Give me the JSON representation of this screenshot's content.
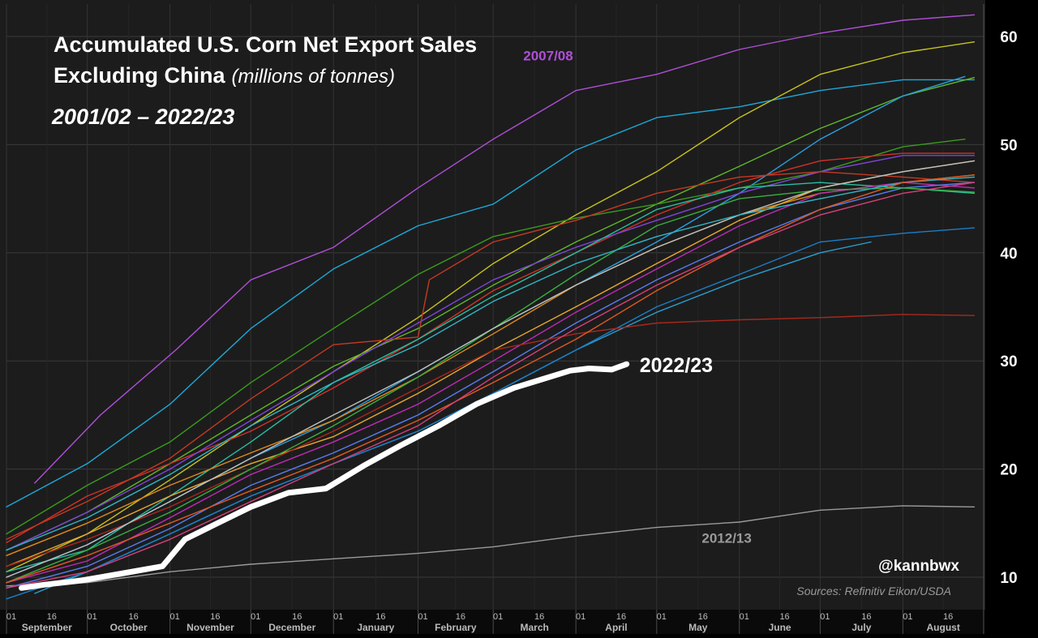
{
  "chart_data": {
    "type": "line",
    "title_line1": "Accumulated U.S. Corn Net Export Sales",
    "title_line2": "Excluding China",
    "title_units": "(millions of tonnes)",
    "subtitle": "2001/02 – 2022/23",
    "handle": "@kannbwx",
    "source": "Sources: Refinitiv Eikon/USDA",
    "ylim": [
      7,
      63
    ],
    "xlim": [
      0,
      52
    ],
    "y_ticks": [
      10,
      20,
      30,
      40,
      50,
      60
    ],
    "months": [
      {
        "name": "September",
        "start": 0
      },
      {
        "name": "October",
        "start": 4.3
      },
      {
        "name": "November",
        "start": 8.7
      },
      {
        "name": "December",
        "start": 13.0
      },
      {
        "name": "January",
        "start": 17.4
      },
      {
        "name": "February",
        "start": 21.9
      },
      {
        "name": "March",
        "start": 25.9
      },
      {
        "name": "April",
        "start": 30.3
      },
      {
        "name": "May",
        "start": 34.6
      },
      {
        "name": "June",
        "start": 39.0
      },
      {
        "name": "July",
        "start": 43.3
      },
      {
        "name": "August",
        "start": 47.7
      }
    ],
    "day_labels": [
      "01",
      "16"
    ],
    "series": [
      {
        "name": "2007/08",
        "color": "#b04fd8",
        "highlight": "label",
        "x": [
          1.5,
          5,
          9,
          13,
          17.4,
          21.9,
          25.9,
          30.3,
          34.6,
          39,
          43.3,
          47.7,
          51.5
        ],
        "y": [
          18.7,
          25,
          31,
          37.5,
          40.5,
          46,
          50.5,
          55,
          56.5,
          58.8,
          60.3,
          61.5,
          62
        ]
      },
      {
        "name": "2012/13",
        "color": "#9a9a9a",
        "highlight": "label",
        "x": [
          0,
          4.3,
          8.7,
          13,
          17.4,
          21.9,
          25.9,
          30.3,
          34.6,
          39,
          43.3,
          47.7,
          51.5
        ],
        "y": [
          9.2,
          9.5,
          10.5,
          11.2,
          11.7,
          12.2,
          12.8,
          13.8,
          14.6,
          15.1,
          16.2,
          16.6,
          16.5
        ]
      },
      {
        "name": "2022/23",
        "color": "#ffffff",
        "highlight": "bold",
        "x": [
          0.8,
          2,
          4,
          6,
          8.3,
          9.5,
          11,
          13,
          15,
          17,
          19,
          21,
          23,
          25,
          27,
          28.5,
          30,
          31,
          32.2,
          33
        ],
        "y": [
          9.0,
          9.3,
          9.7,
          10.3,
          11.0,
          13.5,
          14.8,
          16.5,
          17.8,
          18.2,
          20.3,
          22.2,
          24.0,
          26.0,
          27.5,
          28.3,
          29.1,
          29.3,
          29.2,
          29.7
        ]
      },
      {
        "x": [
          0,
          4.3,
          8.7,
          13,
          17.4,
          21.9,
          25.9,
          30.3,
          34.6,
          39,
          43.3,
          47.7,
          51.5
        ],
        "y": [
          16.5,
          20.5,
          26,
          33,
          38.5,
          42.5,
          44.5,
          49.5,
          52.5,
          53.5,
          55,
          56,
          56
        ],
        "color": "#1da9d8"
      },
      {
        "x": [
          0,
          4.3,
          8.7,
          13,
          17.4,
          21.9,
          25.9,
          30.3,
          34.6,
          39,
          43.3,
          47.7,
          51.5
        ],
        "y": [
          10.5,
          14,
          19,
          24,
          29,
          34,
          39,
          43.5,
          47.5,
          52.5,
          56.5,
          58.5,
          59.5
        ],
        "color": "#c8c21e"
      },
      {
        "x": [
          0,
          4.3,
          8.7,
          13,
          17.4,
          21.9,
          25.9,
          30.3,
          34.6,
          39,
          43.3,
          47.7,
          51.5
        ],
        "y": [
          12.5,
          16,
          20.5,
          25,
          29.5,
          33,
          37,
          41,
          44.5,
          48,
          51.5,
          54.5,
          56.2
        ],
        "color": "#5fb82a"
      },
      {
        "x": [
          0,
          4.3,
          8.7,
          13,
          17.4,
          21.9,
          25.9,
          30.3,
          34.6,
          39,
          43.3,
          47.7,
          51
        ],
        "y": [
          10,
          13,
          17,
          21,
          24.5,
          29,
          33,
          37,
          41,
          45.5,
          50.5,
          54.5,
          56.3
        ],
        "color": "#2a9fe0"
      },
      {
        "x": [
          0,
          4.3,
          8.7,
          13,
          17.4,
          21.9,
          25.9,
          30.3,
          34.6,
          39,
          43.3,
          47.7,
          51
        ],
        "y": [
          14,
          18.5,
          22.5,
          28,
          33,
          38,
          41.5,
          43.2,
          44.5,
          46,
          47.5,
          49.8,
          50.5
        ],
        "color": "#3a9c1c"
      },
      {
        "x": [
          0,
          4.3,
          8.7,
          13,
          17.4,
          21.9,
          25.9,
          30.3,
          34.6,
          39,
          43.3,
          47.7,
          51.5
        ],
        "y": [
          13.2,
          17.5,
          20.5,
          23.5,
          27.5,
          32,
          36.5,
          40,
          43.5,
          46.5,
          48.5,
          49.2,
          49.2
        ],
        "color": "#d2312a"
      },
      {
        "x": [
          0,
          4.3,
          8.7,
          13,
          17.4,
          21.9,
          25.9,
          30.3,
          34.6,
          39,
          43.3,
          47.7,
          51.5
        ],
        "y": [
          12.5,
          16,
          20,
          24.5,
          29,
          33.5,
          37.5,
          40.5,
          43,
          45.5,
          47.5,
          49,
          49
        ],
        "color": "#7f44d8"
      },
      {
        "x": [
          0,
          4.3,
          8.7,
          13,
          17.4,
          21.9,
          22.5,
          25.9,
          30.3,
          34.6,
          39,
          43.3,
          47.7,
          51.5
        ],
        "y": [
          13.5,
          17,
          21,
          26.5,
          31.5,
          32.2,
          37.5,
          41,
          43,
          45.5,
          47,
          47.5,
          47,
          46.5
        ],
        "color": "#c33a22"
      },
      {
        "x": [
          0,
          4.3,
          8.7,
          13,
          17.4,
          21.9,
          25.9,
          30.3,
          34.6,
          39,
          43.3,
          47.7,
          51.5
        ],
        "y": [
          10.5,
          12.5,
          17.5,
          22.5,
          28,
          32,
          36,
          40,
          44,
          46,
          46.5,
          46,
          45.5
        ],
        "color": "#25c0a0"
      },
      {
        "x": [
          0,
          4.3,
          8.7,
          13,
          17.4,
          21.9,
          25.9,
          30.3,
          34.6,
          39,
          43.3,
          47.7,
          51.5
        ],
        "y": [
          12,
          15,
          18.5,
          21.5,
          24.5,
          28.5,
          32.5,
          37,
          40.5,
          43.5,
          45.5,
          46.5,
          47.2
        ],
        "color": "#e08a1a"
      },
      {
        "x": [
          0,
          4.3,
          8.7,
          13,
          17.4,
          21.9,
          25.9,
          30.3,
          34.6,
          39,
          43.3,
          47.7,
          51.5
        ],
        "y": [
          11,
          14,
          17.5,
          20.5,
          23,
          27,
          31,
          35,
          39,
          43,
          46,
          47.5,
          48.5
        ],
        "color": "#e8a830"
      },
      {
        "x": [
          0,
          4.3,
          8.7,
          13,
          17.4,
          21.9,
          25.9,
          30.3,
          34.6,
          39,
          43.3,
          47.7,
          51.5
        ],
        "y": [
          9.5,
          11.5,
          15.5,
          19.5,
          22.5,
          26,
          30,
          34.5,
          38.5,
          42.5,
          45.5,
          46.5,
          46
        ],
        "color": "#c02ab8"
      },
      {
        "x": [
          0,
          4.3,
          8.7,
          13,
          17.4,
          21.9,
          25.9,
          30.3,
          34.6,
          39,
          43.3,
          47.7,
          51.5
        ],
        "y": [
          9,
          11,
          14.5,
          18.5,
          21.5,
          25,
          29,
          33.5,
          37.5,
          41,
          44,
          46,
          46.5
        ],
        "color": "#5a7cf0"
      },
      {
        "x": [
          1.5,
          4.3,
          8.7,
          13,
          17.4,
          21.9,
          25.9,
          30.3,
          34.6,
          39,
          43.3,
          46
        ],
        "y": [
          8.5,
          10.5,
          14,
          17.5,
          20.5,
          23.5,
          27,
          31,
          34.5,
          37.5,
          40,
          41
        ],
        "color": "#2a9fd0"
      },
      {
        "x": [
          0,
          4.3,
          8.7,
          13,
          17.4,
          21.9,
          25.9,
          30.3,
          34.6,
          39,
          43.3,
          47.7,
          51.5
        ],
        "y": [
          8,
          10.5,
          14,
          17.5,
          20.5,
          23.5,
          27,
          31,
          35,
          38,
          41,
          41.8,
          42.3
        ],
        "color": "#1a7fc8"
      },
      {
        "x": [
          0,
          4.3,
          8.7,
          13,
          17.4,
          21.9,
          25.9,
          30.3,
          34.6,
          39,
          43.3,
          47.7,
          51.5
        ],
        "y": [
          11,
          13.5,
          16.5,
          20,
          23.5,
          27.5,
          31,
          32.5,
          33.5,
          33.8,
          34,
          34.3,
          34.2
        ],
        "color": "#a8281c"
      },
      {
        "x": [
          0,
          4.3,
          8.7,
          13,
          17.4,
          21.9,
          25.9,
          30.3,
          34.6,
          39,
          43.3,
          47.7,
          51.5
        ],
        "y": [
          9.5,
          12.5,
          16,
          20,
          24,
          28.5,
          33,
          38,
          42.5,
          45,
          45.8,
          46,
          45.6
        ],
        "color": "#38b040"
      },
      {
        "x": [
          0,
          4.3,
          8.7,
          13,
          17.4,
          21.9,
          25.9,
          30.3,
          34.6,
          39,
          43.3,
          47.7,
          51.5
        ],
        "y": [
          10,
          13,
          17,
          21,
          25,
          29,
          33,
          37,
          40.5,
          43.5,
          46,
          47.5,
          48.5
        ],
        "color": "#c0c0c0"
      },
      {
        "x": [
          0,
          4.3,
          8.7,
          13,
          17.4,
          21.9,
          25.9,
          30.3,
          34.6,
          39,
          43.3,
          47.7,
          51.5
        ],
        "y": [
          12.5,
          15.5,
          19.5,
          24,
          28,
          31.5,
          35.5,
          39,
          41.5,
          43.5,
          45,
          46.5,
          47
        ],
        "color": "#2fb8c8"
      },
      {
        "x": [
          0,
          4.3,
          8.7,
          13,
          17.4,
          21.9,
          25.9,
          30.3,
          34.6,
          39,
          43.3,
          47.7,
          51.5
        ],
        "y": [
          9.5,
          12,
          15,
          18,
          21,
          24.5,
          28,
          32,
          36.5,
          40.5,
          44,
          46.5,
          47.2
        ],
        "color": "#e05a20"
      },
      {
        "x": [
          0,
          4.3,
          8.7,
          13,
          17.4,
          21.9,
          25.9,
          30.3,
          34.6,
          39,
          43.3,
          47.7,
          51.5
        ],
        "y": [
          9,
          10.5,
          13.5,
          17,
          20.5,
          24,
          28.5,
          33,
          37,
          40.5,
          43.5,
          45.5,
          46.5
        ],
        "color": "#d6407a"
      }
    ]
  }
}
